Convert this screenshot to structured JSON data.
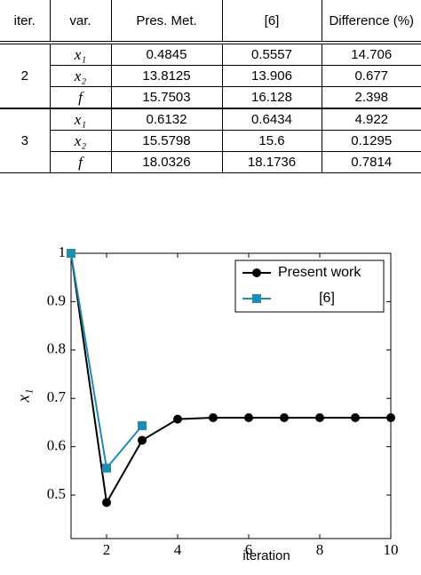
{
  "table": {
    "header": [
      "iter.",
      "var.",
      "Pres. Met.",
      "[6]",
      "Difference (%)"
    ],
    "groups": [
      {
        "iter": "2",
        "rows": [
          [
            "x₁",
            "0.4845",
            "0.5557",
            "14.706"
          ],
          [
            "x₂",
            "13.8125",
            "13.906",
            "0.677"
          ],
          [
            "f",
            "15.7503",
            "16.128",
            "2.398"
          ]
        ]
      },
      {
        "iter": "3",
        "rows": [
          [
            "x₁",
            "0.6132",
            "0.6434",
            "4.922"
          ],
          [
            "x₂",
            "15.5798",
            "15.6",
            "0.1295"
          ],
          [
            "f",
            "18.0326",
            "18.1736",
            "0.7814"
          ]
        ]
      }
    ]
  },
  "chart_data": {
    "type": "line",
    "x_label": "iteration",
    "y_label": "x₁",
    "xlim": [
      1,
      10
    ],
    "xticks": [
      2,
      4,
      6,
      8,
      10
    ],
    "ylim": [
      0.41,
      1
    ],
    "yticks": [
      0.5,
      0.6,
      0.7,
      0.8,
      0.9,
      1
    ],
    "legend": "northeast",
    "series": [
      {
        "name": "Present work",
        "color": "#000000",
        "marker": "circle",
        "x": [
          1,
          2,
          3,
          4,
          5,
          6,
          7,
          8,
          9,
          10
        ],
        "values": [
          1,
          0.4845,
          0.6132,
          0.657,
          0.66,
          0.66,
          0.66,
          0.66,
          0.66,
          0.66
        ]
      },
      {
        "name": "[6]",
        "color": "#1f8bb3",
        "marker": "square",
        "x": [
          1,
          2,
          3
        ],
        "values": [
          1,
          0.5557,
          0.6434
        ]
      }
    ]
  }
}
